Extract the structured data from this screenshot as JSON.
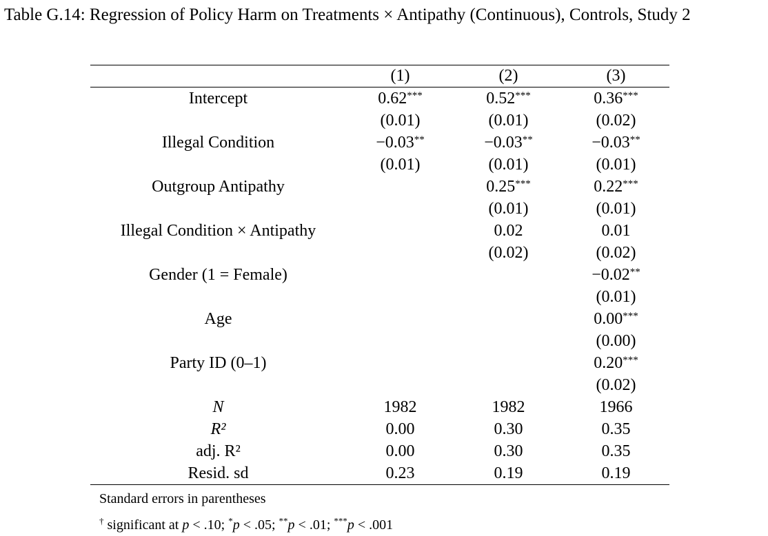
{
  "caption": "Table G.14: Regression of Policy Harm on Treatments × Antipathy (Continuous), Controls, Study 2",
  "columns": [
    "(1)",
    "(2)",
    "(3)"
  ],
  "rows": [
    {
      "label": "Intercept",
      "cells": [
        {
          "v": "0.62",
          "s": "***"
        },
        {
          "v": "0.52",
          "s": "***"
        },
        {
          "v": "0.36",
          "s": "***"
        }
      ]
    },
    {
      "label": "",
      "cells": [
        {
          "v": "(0.01)",
          "s": ""
        },
        {
          "v": "(0.01)",
          "s": ""
        },
        {
          "v": "(0.02)",
          "s": ""
        }
      ]
    },
    {
      "label": "Illegal Condition",
      "cells": [
        {
          "v": "−0.03",
          "s": "**"
        },
        {
          "v": "−0.03",
          "s": "**"
        },
        {
          "v": "−0.03",
          "s": "**"
        }
      ]
    },
    {
      "label": "",
      "cells": [
        {
          "v": "(0.01)",
          "s": ""
        },
        {
          "v": "(0.01)",
          "s": ""
        },
        {
          "v": "(0.01)",
          "s": ""
        }
      ]
    },
    {
      "label": "Outgroup Antipathy",
      "cells": [
        {
          "v": "",
          "s": ""
        },
        {
          "v": "0.25",
          "s": "***"
        },
        {
          "v": "0.22",
          "s": "***"
        }
      ]
    },
    {
      "label": "",
      "cells": [
        {
          "v": "",
          "s": ""
        },
        {
          "v": "(0.01)",
          "s": ""
        },
        {
          "v": "(0.01)",
          "s": ""
        }
      ]
    },
    {
      "label": "Illegal Condition × Antipathy",
      "cells": [
        {
          "v": "",
          "s": ""
        },
        {
          "v": "0.02",
          "s": ""
        },
        {
          "v": "0.01",
          "s": ""
        }
      ]
    },
    {
      "label": "",
      "cells": [
        {
          "v": "",
          "s": ""
        },
        {
          "v": "(0.02)",
          "s": ""
        },
        {
          "v": "(0.02)",
          "s": ""
        }
      ]
    },
    {
      "label": "Gender (1 = Female)",
      "cells": [
        {
          "v": "",
          "s": ""
        },
        {
          "v": "",
          "s": ""
        },
        {
          "v": "−0.02",
          "s": "**"
        }
      ]
    },
    {
      "label": "",
      "cells": [
        {
          "v": "",
          "s": ""
        },
        {
          "v": "",
          "s": ""
        },
        {
          "v": "(0.01)",
          "s": ""
        }
      ]
    },
    {
      "label": "Age",
      "cells": [
        {
          "v": "",
          "s": ""
        },
        {
          "v": "",
          "s": ""
        },
        {
          "v": "0.00",
          "s": "***"
        }
      ]
    },
    {
      "label": "",
      "cells": [
        {
          "v": "",
          "s": ""
        },
        {
          "v": "",
          "s": ""
        },
        {
          "v": "(0.00)",
          "s": ""
        }
      ]
    },
    {
      "label": "Party ID (0–1)",
      "cells": [
        {
          "v": "",
          "s": ""
        },
        {
          "v": "",
          "s": ""
        },
        {
          "v": "0.20",
          "s": "***"
        }
      ]
    },
    {
      "label": "",
      "cells": [
        {
          "v": "",
          "s": ""
        },
        {
          "v": "",
          "s": ""
        },
        {
          "v": "(0.02)",
          "s": ""
        }
      ]
    }
  ],
  "stats": [
    {
      "label": "N",
      "italic": true,
      "cells": [
        "1982",
        "1982",
        "1966"
      ]
    },
    {
      "label": "R²",
      "italic": true,
      "cells": [
        "0.00",
        "0.30",
        "0.35"
      ]
    },
    {
      "label": "adj. R²",
      "italic": false,
      "cells": [
        "0.00",
        "0.30",
        "0.35"
      ]
    },
    {
      "label": "Resid. sd",
      "italic": false,
      "cells": [
        "0.23",
        "0.19",
        "0.19"
      ]
    }
  ],
  "notes": {
    "line1": "Standard errors in parentheses",
    "line2": "† significant at p < .10; *p < .05; **p < .01; ***p < .001"
  }
}
